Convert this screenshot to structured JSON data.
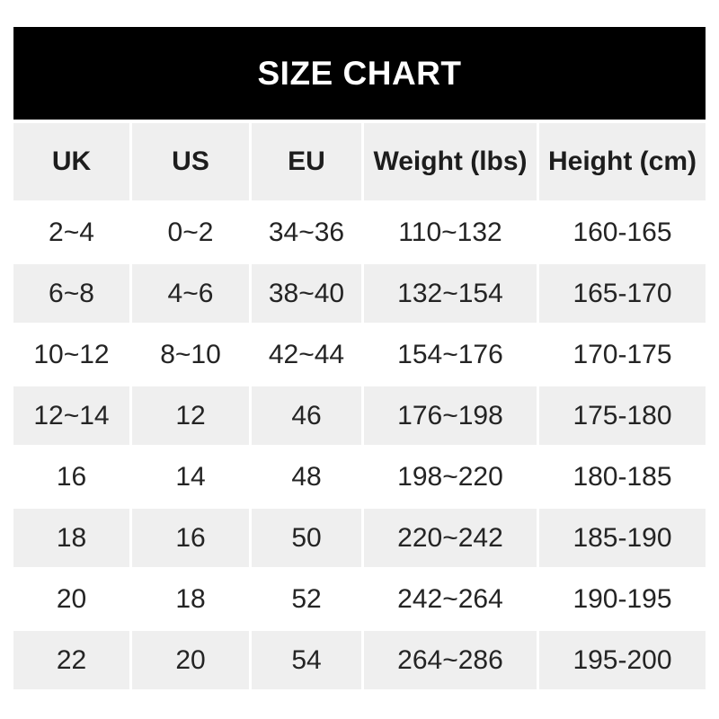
{
  "title": "SIZE CHART",
  "colors": {
    "title_bar_bg": "#000000",
    "title_text": "#ffffff",
    "shaded_cell_bg": "#efefef",
    "plain_cell_bg": "#ffffff",
    "cell_text": "#242424"
  },
  "chart_data": {
    "type": "table",
    "title": "SIZE CHART",
    "columns": [
      "UK",
      "US",
      "EU",
      "Weight (lbs)",
      "Height (cm)"
    ],
    "rows": [
      [
        "2~4",
        "0~2",
        "34~36",
        "110~132",
        "160-165"
      ],
      [
        "6~8",
        "4~6",
        "38~40",
        "132~154",
        "165-170"
      ],
      [
        "10~12",
        "8~10",
        "42~44",
        "154~176",
        "170-175"
      ],
      [
        "12~14",
        "12",
        "46",
        "176~198",
        "175-180"
      ],
      [
        "16",
        "14",
        "48",
        "198~220",
        "180-185"
      ],
      [
        "18",
        "16",
        "50",
        "220~242",
        "185-190"
      ],
      [
        "20",
        "18",
        "52",
        "242~264",
        "190-195"
      ],
      [
        "22",
        "20",
        "54",
        "264~286",
        "195-200"
      ]
    ],
    "layout": {
      "header_row_shaded": true,
      "body_rows_alternate": "white, gray, starting with white",
      "weight_separator": "~",
      "height_separator": "-"
    }
  }
}
